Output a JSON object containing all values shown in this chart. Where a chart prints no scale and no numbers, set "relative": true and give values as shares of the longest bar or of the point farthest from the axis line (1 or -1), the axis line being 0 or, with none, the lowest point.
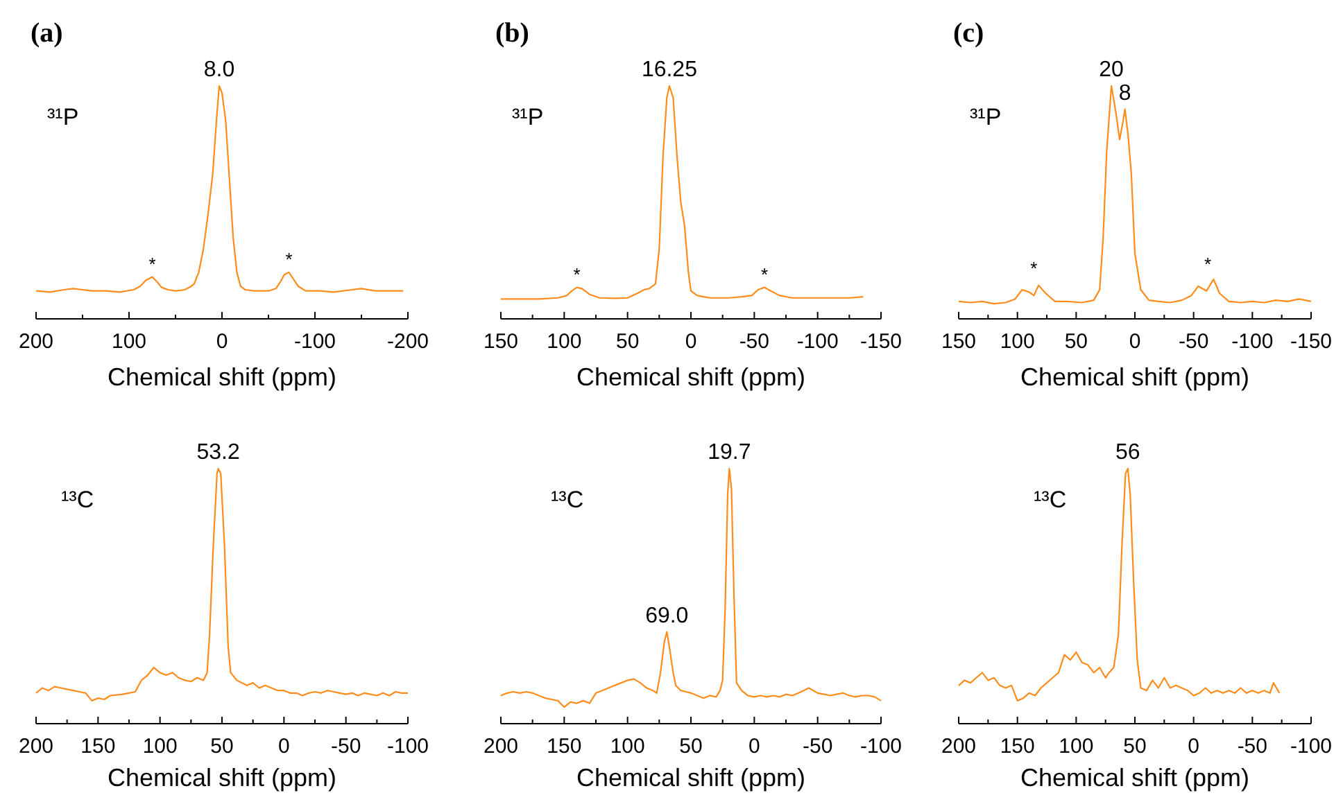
{
  "chart_data": [
    {
      "type": "line",
      "title": "(a)",
      "xlabel": "Chemical shift (ppm)",
      "relative": true,
      "xlim": [
        200,
        -200
      ],
      "xticks": [
        200,
        {
          "value": 150,
          "label": null
        },
        100,
        {
          "value": 50,
          "label": null
        },
        0,
        {
          "value": -50,
          "label": null
        },
        -100,
        {
          "value": -150,
          "label": null
        },
        -200
      ],
      "series": [
        {
          "color": "#ff8c1a",
          "x": [
            200,
            185,
            170,
            160,
            150,
            140,
            125,
            110,
            95,
            88,
            82,
            75,
            70,
            65,
            58,
            50,
            40,
            33,
            30,
            25,
            20,
            15,
            10,
            6,
            3,
            0,
            -4,
            -8,
            -12,
            -16,
            -20,
            -25,
            -35,
            -50,
            -58,
            -63,
            -67,
            -72,
            -77,
            -82,
            -90,
            -105,
            -120,
            -140,
            -150,
            -165,
            -180,
            -195
          ],
          "values": [
            0.12,
            0.115,
            0.125,
            0.13,
            0.125,
            0.12,
            0.12,
            0.115,
            0.125,
            0.14,
            0.165,
            0.18,
            0.16,
            0.135,
            0.125,
            0.12,
            0.125,
            0.14,
            0.15,
            0.2,
            0.3,
            0.45,
            0.62,
            0.85,
            1.0,
            0.97,
            0.85,
            0.6,
            0.35,
            0.2,
            0.14,
            0.125,
            0.12,
            0.12,
            0.13,
            0.16,
            0.19,
            0.2,
            0.17,
            0.14,
            0.12,
            0.12,
            0.115,
            0.125,
            0.13,
            0.12,
            0.12,
            0.12
          ]
        }
      ],
      "annotations": [
        "³¹P",
        {
          "text": "8.0",
          "x": 3,
          "y": 1.0
        },
        {
          "text": "*",
          "x": 75,
          "y": 0.18
        },
        {
          "text": "*",
          "x": -72,
          "y": 0.2
        }
      ]
    },
    {
      "type": "line",
      "title": "(b)",
      "xlabel": "Chemical shift (ppm)",
      "relative": true,
      "xlim": [
        150,
        -150
      ],
      "xticks": [
        150,
        {
          "value": 125,
          "label": null
        },
        100,
        {
          "value": 75,
          "label": null
        },
        50,
        {
          "value": 25,
          "label": null
        },
        0,
        {
          "value": -25,
          "label": null
        },
        -50,
        {
          "value": -75,
          "label": null
        },
        -100,
        {
          "value": -125,
          "label": null
        },
        -150
      ],
      "series": [
        {
          "color": "#ff8c1a",
          "x": [
            150,
            135,
            120,
            105,
            98,
            94,
            90,
            86,
            80,
            72,
            60,
            50,
            42,
            37,
            33,
            28,
            25,
            22,
            19,
            17,
            14,
            11,
            8,
            5,
            2,
            0,
            -5,
            -15,
            -30,
            -40,
            -48,
            -53,
            -58,
            -63,
            -70,
            -80,
            -95,
            -110,
            -125,
            -136
          ],
          "values": [
            0.085,
            0.085,
            0.085,
            0.09,
            0.1,
            0.12,
            0.135,
            0.13,
            0.105,
            0.09,
            0.088,
            0.09,
            0.11,
            0.125,
            0.13,
            0.15,
            0.3,
            0.7,
            0.95,
            1.0,
            0.95,
            0.7,
            0.5,
            0.4,
            0.2,
            0.12,
            0.1,
            0.09,
            0.09,
            0.095,
            0.1,
            0.125,
            0.135,
            0.12,
            0.1,
            0.09,
            0.09,
            0.09,
            0.09,
            0.095
          ]
        }
      ],
      "annotations": [
        "³¹P",
        {
          "text": "16.25",
          "x": 17,
          "y": 1.0
        },
        {
          "text": "*",
          "x": 90,
          "y": 0.135
        },
        {
          "text": "*",
          "x": -58,
          "y": 0.135
        }
      ]
    },
    {
      "type": "line",
      "title": "(c)",
      "xlabel": "Chemical shift (ppm)",
      "relative": true,
      "xlim": [
        150,
        -150
      ],
      "xticks": [
        150,
        {
          "value": 125,
          "label": null
        },
        100,
        {
          "value": 75,
          "label": null
        },
        50,
        {
          "value": 25,
          "label": null
        },
        0,
        {
          "value": -25,
          "label": null
        },
        -50,
        {
          "value": -75,
          "label": null
        },
        -100,
        {
          "value": -125,
          "label": null
        },
        -150
      ],
      "series": [
        {
          "color": "#ff8c1a",
          "x": [
            150,
            140,
            130,
            120,
            110,
            102,
            96,
            90,
            86,
            82,
            76,
            68,
            58,
            45,
            35,
            30,
            27,
            24,
            20,
            16,
            13,
            10,
            8.5,
            6,
            3,
            0,
            -5,
            -12,
            -20,
            -30,
            -40,
            -48,
            -54,
            -61,
            -67,
            -72,
            -80,
            -90,
            -100,
            -110,
            -120,
            -130,
            -140,
            -150
          ],
          "values": [
            0.075,
            0.07,
            0.075,
            0.065,
            0.07,
            0.085,
            0.125,
            0.115,
            0.1,
            0.144,
            0.11,
            0.075,
            0.075,
            0.07,
            0.08,
            0.125,
            0.35,
            0.72,
            1.0,
            0.88,
            0.77,
            0.85,
            0.9,
            0.8,
            0.62,
            0.28,
            0.125,
            0.08,
            0.075,
            0.07,
            0.08,
            0.1,
            0.14,
            0.12,
            0.17,
            0.11,
            0.075,
            0.07,
            0.075,
            0.07,
            0.08,
            0.075,
            0.085,
            0.075
          ]
        }
      ],
      "annotations": [
        "³¹P",
        {
          "text": "20",
          "x": 20,
          "y": 1.0
        },
        {
          "text": "8",
          "x": 8.5,
          "y": 0.9
        },
        {
          "text": "*",
          "x": 86,
          "y": 0.16
        },
        {
          "text": "*",
          "x": -62,
          "y": 0.18
        }
      ]
    },
    {
      "type": "line",
      "xlabel": "Chemical shift (ppm)",
      "relative": true,
      "xlim": [
        200,
        -100
      ],
      "xticks": [
        200,
        {
          "value": 175,
          "label": null
        },
        150,
        {
          "value": 125,
          "label": null
        },
        100,
        {
          "value": 75,
          "label": null
        },
        50,
        {
          "value": 25,
          "label": null
        },
        0,
        {
          "value": -25,
          "label": null
        },
        -50,
        {
          "value": -75,
          "label": null
        },
        -100
      ],
      "series": [
        {
          "color": "#ff8c1a",
          "x": [
            200,
            195,
            190,
            185,
            180,
            175,
            170,
            165,
            160,
            155,
            150,
            145,
            140,
            130,
            120,
            115,
            110,
            105,
            100,
            95,
            90,
            85,
            80,
            75,
            70,
            65,
            62,
            60,
            57,
            54,
            53,
            51,
            48,
            45,
            43,
            38,
            34,
            30,
            25,
            20,
            15,
            10,
            5,
            0,
            -5,
            -10,
            -15,
            -20,
            -25,
            -30,
            -35,
            -40,
            -45,
            -50,
            -55,
            -60,
            -65,
            -70,
            -75,
            -80,
            -85,
            -90,
            -95,
            -100
          ],
          "values": [
            0.12,
            0.14,
            0.13,
            0.145,
            0.14,
            0.135,
            0.13,
            0.125,
            0.12,
            0.09,
            0.1,
            0.095,
            0.11,
            0.115,
            0.125,
            0.17,
            0.19,
            0.22,
            0.2,
            0.19,
            0.2,
            0.18,
            0.17,
            0.165,
            0.18,
            0.17,
            0.2,
            0.35,
            0.7,
            0.98,
            1.0,
            0.98,
            0.7,
            0.3,
            0.2,
            0.17,
            0.16,
            0.15,
            0.16,
            0.14,
            0.15,
            0.14,
            0.13,
            0.13,
            0.12,
            0.12,
            0.11,
            0.12,
            0.125,
            0.12,
            0.13,
            0.125,
            0.12,
            0.115,
            0.12,
            0.11,
            0.12,
            0.115,
            0.11,
            0.12,
            0.11,
            0.125,
            0.12,
            0.12
          ]
        }
      ],
      "annotations": [
        "¹³C",
        {
          "text": "53.2",
          "x": 53,
          "y": 1.0
        }
      ]
    },
    {
      "type": "line",
      "xlabel": "Chemical shift (ppm)",
      "relative": true,
      "xlim": [
        200,
        -100
      ],
      "xticks": [
        200,
        {
          "value": 175,
          "label": null
        },
        150,
        {
          "value": 125,
          "label": null
        },
        100,
        {
          "value": 75,
          "label": null
        },
        50,
        {
          "value": 25,
          "label": null
        },
        0,
        {
          "value": -25,
          "label": null
        },
        -50,
        {
          "value": -75,
          "label": null
        },
        -100
      ],
      "series": [
        {
          "color": "#ff8c1a",
          "x": [
            200,
            195,
            190,
            185,
            180,
            175,
            170,
            165,
            160,
            155,
            150,
            145,
            140,
            135,
            130,
            125,
            120,
            115,
            110,
            105,
            100,
            95,
            90,
            85,
            80,
            77,
            74,
            71,
            69,
            67,
            64,
            62,
            58,
            54,
            50,
            45,
            40,
            35,
            30,
            27,
            25,
            23,
            21,
            19.7,
            18,
            16,
            14,
            10,
            5,
            0,
            -5,
            -10,
            -15,
            -20,
            -25,
            -30,
            -35,
            -43,
            -50,
            -55,
            -60,
            -65,
            -70,
            -75,
            -80,
            -85,
            -90,
            -95,
            -100
          ],
          "values": [
            0.11,
            0.12,
            0.125,
            0.12,
            0.125,
            0.12,
            0.11,
            0.1,
            0.095,
            0.09,
            0.065,
            0.085,
            0.08,
            0.09,
            0.08,
            0.12,
            0.13,
            0.14,
            0.15,
            0.16,
            0.17,
            0.175,
            0.16,
            0.14,
            0.13,
            0.12,
            0.2,
            0.32,
            0.36,
            0.3,
            0.2,
            0.15,
            0.13,
            0.125,
            0.12,
            0.11,
            0.1,
            0.11,
            0.105,
            0.13,
            0.17,
            0.45,
            0.9,
            1.0,
            0.92,
            0.5,
            0.16,
            0.13,
            0.11,
            0.105,
            0.11,
            0.105,
            0.11,
            0.105,
            0.115,
            0.11,
            0.12,
            0.14,
            0.12,
            0.115,
            0.11,
            0.115,
            0.12,
            0.11,
            0.105,
            0.11,
            0.11,
            0.105,
            0.09
          ]
        }
      ],
      "annotations": [
        "¹³C",
        {
          "text": "69.0",
          "x": 69,
          "y": 0.36
        },
        {
          "text": "19.7",
          "x": 19.7,
          "y": 1.0
        }
      ]
    },
    {
      "type": "line",
      "xlabel": "Chemical shift (ppm)",
      "relative": true,
      "xlim": [
        200,
        -100
      ],
      "xticks": [
        200,
        {
          "value": 175,
          "label": null
        },
        150,
        {
          "value": 125,
          "label": null
        },
        100,
        {
          "value": 75,
          "label": null
        },
        50,
        {
          "value": 25,
          "label": null
        },
        0,
        {
          "value": -25,
          "label": null
        },
        -50,
        {
          "value": -75,
          "label": null
        },
        -100
      ],
      "series": [
        {
          "color": "#ff8c1a",
          "x": [
            200,
            195,
            190,
            185,
            180,
            175,
            170,
            165,
            160,
            155,
            150,
            145,
            140,
            135,
            130,
            125,
            120,
            115,
            110,
            105,
            100,
            95,
            90,
            85,
            80,
            75,
            72,
            68,
            64,
            61,
            58,
            56,
            54,
            51,
            48,
            45,
            40,
            35,
            30,
            25,
            20,
            15,
            10,
            5,
            0,
            -5,
            -10,
            -15,
            -20,
            -25,
            -30,
            -35,
            -40,
            -45,
            -50,
            -55,
            -60,
            -65,
            -68,
            -73
          ],
          "values": [
            0.15,
            0.17,
            0.16,
            0.18,
            0.2,
            0.17,
            0.18,
            0.15,
            0.14,
            0.15,
            0.09,
            0.1,
            0.12,
            0.11,
            0.14,
            0.16,
            0.18,
            0.2,
            0.27,
            0.25,
            0.28,
            0.24,
            0.23,
            0.2,
            0.22,
            0.18,
            0.2,
            0.22,
            0.35,
            0.7,
            0.98,
            1.0,
            0.9,
            0.55,
            0.25,
            0.14,
            0.13,
            0.17,
            0.14,
            0.18,
            0.14,
            0.15,
            0.14,
            0.13,
            0.11,
            0.12,
            0.14,
            0.12,
            0.13,
            0.12,
            0.13,
            0.12,
            0.14,
            0.12,
            0.13,
            0.12,
            0.13,
            0.12,
            0.16,
            0.12
          ]
        }
      ],
      "annotations": [
        "¹³C",
        {
          "text": "56",
          "x": 56,
          "y": 1.0
        }
      ]
    }
  ]
}
